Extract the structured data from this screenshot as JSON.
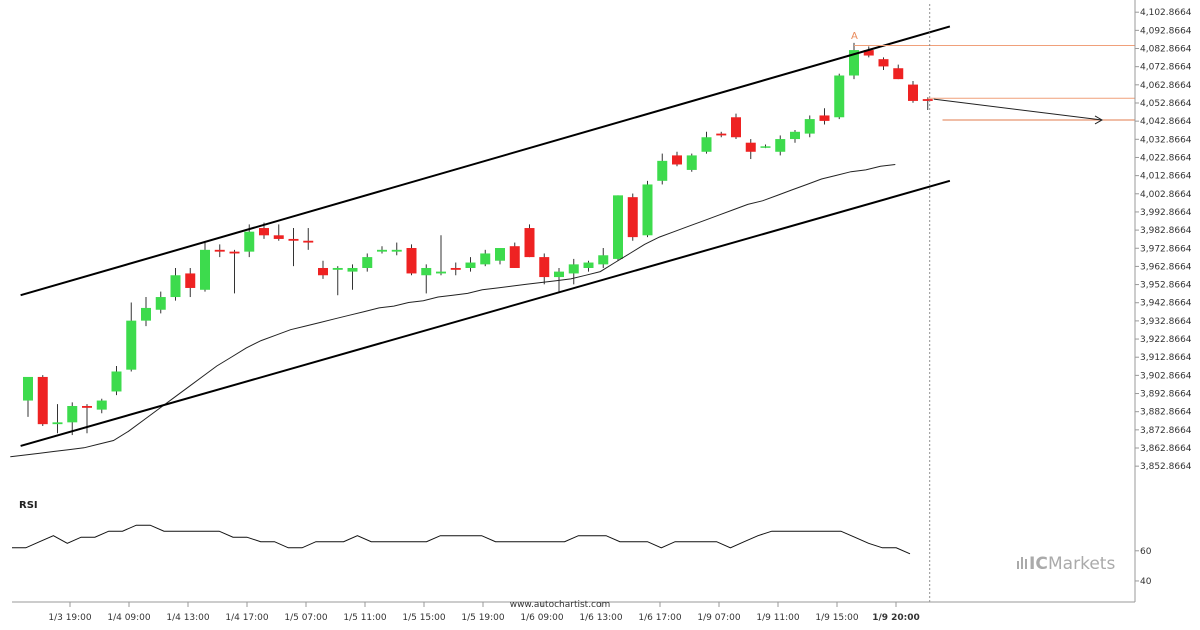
{
  "chart_data": {
    "type": "candlestick",
    "instrument_panel": {
      "x_ticks": [
        "1/3 19:00",
        "1/4 09:00",
        "1/4 13:00",
        "1/4 17:00",
        "1/5 07:00",
        "1/5 11:00",
        "1/5 15:00",
        "1/5 19:00",
        "1/6 09:00",
        "1/6 13:00",
        "1/6 17:00",
        "1/9 07:00",
        "1/9 11:00",
        "1/9 15:00",
        "1/9 20:00"
      ],
      "y_ticks": [
        "4,102.8664",
        "4,092.8664",
        "4,082.8664",
        "4,072.8664",
        "4,062.8664",
        "4,052.8664",
        "4,042.8664",
        "4,032.8664",
        "4,022.8664",
        "4,012.8664",
        "4,002.8664",
        "3,992.8664",
        "3,982.8664",
        "3,972.8664",
        "3,962.8664",
        "3,952.8664",
        "3,942.8664",
        "3,932.8664",
        "3,922.8664",
        "3,912.8664",
        "3,902.8664",
        "3,892.8664",
        "3,882.8664",
        "3,872.8664",
        "3,862.8664",
        "3,852.8664"
      ],
      "y_tick_values": [
        4102.8664,
        4092.8664,
        4082.8664,
        4072.8664,
        4062.8664,
        4052.8664,
        4042.8664,
        4032.8664,
        4022.8664,
        4012.8664,
        4002.8664,
        3992.8664,
        3982.8664,
        3972.8664,
        3962.8664,
        3952.8664,
        3942.8664,
        3932.8664,
        3922.8664,
        3912.8664,
        3902.8664,
        3892.8664,
        3882.8664,
        3872.8664,
        3862.8664,
        3852.8664
      ],
      "ylim": [
        3848,
        4106
      ],
      "candles": [
        {
          "o": 3889,
          "h": 3902,
          "l": 3880,
          "c": 3902
        },
        {
          "o": 3902,
          "h": 3903,
          "l": 3875,
          "c": 3876
        },
        {
          "o": 3876,
          "h": 3887,
          "l": 3871,
          "c": 3877
        },
        {
          "o": 3877,
          "h": 3888,
          "l": 3870,
          "c": 3886
        },
        {
          "o": 3886,
          "h": 3887,
          "l": 3871,
          "c": 3885
        },
        {
          "o": 3884,
          "h": 3890,
          "l": 3882,
          "c": 3889
        },
        {
          "o": 3894,
          "h": 3908,
          "l": 3892,
          "c": 3905
        },
        {
          "o": 3906,
          "h": 3943,
          "l": 3905,
          "c": 3933
        },
        {
          "o": 3933,
          "h": 3946,
          "l": 3930,
          "c": 3940
        },
        {
          "o": 3939,
          "h": 3949,
          "l": 3937,
          "c": 3946
        },
        {
          "o": 3946,
          "h": 3962,
          "l": 3944,
          "c": 3958
        },
        {
          "o": 3959,
          "h": 3962,
          "l": 3946,
          "c": 3951
        },
        {
          "o": 3950,
          "h": 3976,
          "l": 3949,
          "c": 3972
        },
        {
          "o": 3972,
          "h": 3975,
          "l": 3968,
          "c": 3971
        },
        {
          "o": 3971,
          "h": 3972,
          "l": 3948,
          "c": 3970
        },
        {
          "o": 3971,
          "h": 3986,
          "l": 3968,
          "c": 3982
        },
        {
          "o": 3984,
          "h": 3987,
          "l": 3978,
          "c": 3980
        },
        {
          "o": 3980,
          "h": 3986,
          "l": 3977,
          "c": 3978
        },
        {
          "o": 3978,
          "h": 3984,
          "l": 3963,
          "c": 3977
        },
        {
          "o": 3977,
          "h": 3984,
          "l": 3972,
          "c": 3976
        },
        {
          "o": 3962,
          "h": 3966,
          "l": 3956,
          "c": 3958
        },
        {
          "o": 3961,
          "h": 3963,
          "l": 3947,
          "c": 3962
        },
        {
          "o": 3960,
          "h": 3964,
          "l": 3950,
          "c": 3962
        },
        {
          "o": 3962,
          "h": 3970,
          "l": 3960,
          "c": 3968
        },
        {
          "o": 3971,
          "h": 3974,
          "l": 3970,
          "c": 3972
        },
        {
          "o": 3971,
          "h": 3976,
          "l": 3969,
          "c": 3972
        },
        {
          "o": 3973,
          "h": 3975,
          "l": 3958,
          "c": 3959
        },
        {
          "o": 3958,
          "h": 3964,
          "l": 3948,
          "c": 3962
        },
        {
          "o": 3959,
          "h": 3980,
          "l": 3958,
          "c": 3960
        },
        {
          "o": 3962,
          "h": 3965,
          "l": 3958,
          "c": 3961
        },
        {
          "o": 3962,
          "h": 3968,
          "l": 3960,
          "c": 3965
        },
        {
          "o": 3964,
          "h": 3972,
          "l": 3963,
          "c": 3970
        },
        {
          "o": 3966,
          "h": 3972,
          "l": 3964,
          "c": 3973
        },
        {
          "o": 3974,
          "h": 3976,
          "l": 3962,
          "c": 3962
        },
        {
          "o": 3984,
          "h": 3986,
          "l": 3968,
          "c": 3968
        },
        {
          "o": 3968,
          "h": 3970,
          "l": 3953,
          "c": 3957
        },
        {
          "o": 3957,
          "h": 3962,
          "l": 3949,
          "c": 3960
        },
        {
          "o": 3959,
          "h": 3967,
          "l": 3953,
          "c": 3964
        },
        {
          "o": 3962,
          "h": 3966,
          "l": 3960,
          "c": 3965
        },
        {
          "o": 3964,
          "h": 3973,
          "l": 3962,
          "c": 3969
        },
        {
          "o": 3967,
          "h": 4002,
          "l": 3966,
          "c": 4002
        },
        {
          "o": 4001,
          "h": 4003,
          "l": 3977,
          "c": 3979
        },
        {
          "o": 3980,
          "h": 4010,
          "l": 3979,
          "c": 4008
        },
        {
          "o": 4010,
          "h": 4025,
          "l": 4008,
          "c": 4021
        },
        {
          "o": 4024,
          "h": 4026,
          "l": 4018,
          "c": 4019
        },
        {
          "o": 4016,
          "h": 4025,
          "l": 4015,
          "c": 4024
        },
        {
          "o": 4026,
          "h": 4037,
          "l": 4025,
          "c": 4034
        },
        {
          "o": 4036,
          "h": 4037,
          "l": 4034,
          "c": 4035
        },
        {
          "o": 4045,
          "h": 4047,
          "l": 4033,
          "c": 4034
        },
        {
          "o": 4031,
          "h": 4033,
          "l": 4022,
          "c": 4026
        },
        {
          "o": 4029,
          "h": 4030,
          "l": 4028,
          "c": 4029
        },
        {
          "o": 4026,
          "h": 4035,
          "l": 4024,
          "c": 4033
        },
        {
          "o": 4033,
          "h": 4038,
          "l": 4031,
          "c": 4037
        },
        {
          "o": 4036,
          "h": 4046,
          "l": 4034,
          "c": 4044
        },
        {
          "o": 4046,
          "h": 4050,
          "l": 4041,
          "c": 4043
        },
        {
          "o": 4045,
          "h": 4069,
          "l": 4044,
          "c": 4068
        },
        {
          "o": 4068,
          "h": 4086,
          "l": 4066,
          "c": 4082
        },
        {
          "o": 4082,
          "h": 4084,
          "l": 4078,
          "c": 4079
        },
        {
          "o": 4077,
          "h": 4078,
          "l": 4071,
          "c": 4073
        },
        {
          "o": 4072,
          "h": 4074,
          "l": 4066,
          "c": 4066
        },
        {
          "o": 4063,
          "h": 4065,
          "l": 4053,
          "c": 4054
        },
        {
          "o": 4055,
          "h": 4056,
          "l": 4049,
          "c": 4054
        }
      ],
      "moving_average": [
        3858,
        3859,
        3860,
        3861,
        3862,
        3863,
        3865,
        3867,
        3872,
        3878,
        3884,
        3890,
        3896,
        3902,
        3908,
        3913,
        3918,
        3922,
        3925,
        3928,
        3930,
        3932,
        3934,
        3936,
        3938,
        3940,
        3941,
        3943,
        3944,
        3946,
        3947,
        3948,
        3950,
        3951,
        3952,
        3953,
        3954,
        3955,
        3956,
        3958,
        3960,
        3965,
        3970,
        3975,
        3979,
        3982,
        3985,
        3988,
        3991,
        3994,
        3997,
        3999,
        4002,
        4005,
        4008,
        4011,
        4013,
        4015,
        4016,
        4018,
        4019
      ],
      "channel": {
        "upper": {
          "x1_index": -0.5,
          "y1": 3947,
          "x2_index": 62.5,
          "y2": 4095
        },
        "lower": {
          "x1_index": -0.5,
          "y1": 3864,
          "x2_index": 62.5,
          "y2": 4010
        }
      },
      "pattern_label": "A",
      "horizontal_levels": [
        {
          "value": 4084.5,
          "from_index": 56,
          "color": "#f0a07a"
        },
        {
          "value": 4055.5,
          "from_index": 61,
          "color": "#f0a07a"
        },
        {
          "value": 4043.5,
          "from_index": 62,
          "color": "#e07b4e"
        }
      ],
      "forecast_arrow": {
        "from_index": 61,
        "from_value": 4055,
        "to_index": 73,
        "to_value": 4043.5
      },
      "current_time_index": 61
    },
    "rsi_panel": {
      "title": "RSI",
      "y_ticks": [
        "60",
        "40"
      ],
      "y_tick_values": [
        60,
        40
      ],
      "ylim": [
        34,
        97
      ],
      "values": [
        62,
        62,
        66,
        70,
        65,
        69,
        69,
        73,
        73,
        77,
        77,
        73,
        73,
        73,
        73,
        73,
        69,
        69,
        66,
        66,
        62,
        62,
        66,
        66,
        66,
        70,
        66,
        66,
        66,
        66,
        66,
        70,
        70,
        70,
        70,
        66,
        66,
        66,
        66,
        66,
        66,
        70,
        70,
        70,
        66,
        66,
        66,
        62,
        66,
        66,
        66,
        66,
        62,
        66,
        70,
        73,
        73,
        73,
        73,
        73,
        73,
        69,
        65,
        62,
        62,
        58
      ]
    },
    "colors": {
      "bull": "#3ddb4d",
      "bear": "#ee2222",
      "wick": "#333333",
      "channel": "#000000",
      "moving_average": "#222222",
      "grid_axis": "#999999"
    }
  },
  "footer": {
    "source_text": "www.autochartist.com",
    "brand_prefix": "IC",
    "brand_suffix": "Markets"
  }
}
